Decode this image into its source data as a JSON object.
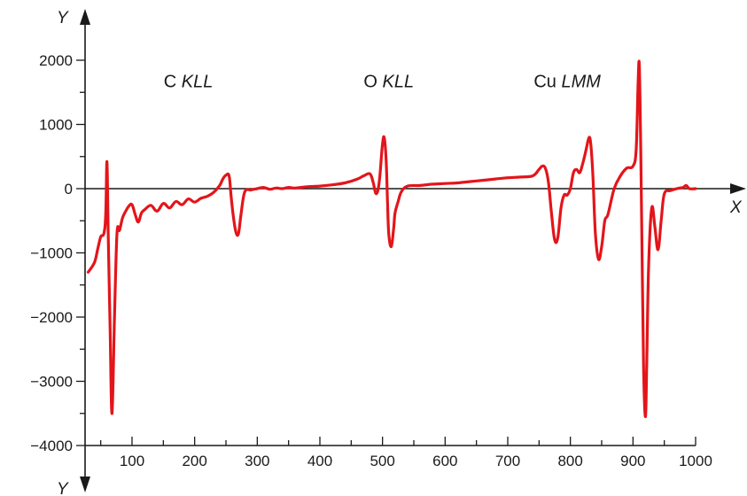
{
  "chart_data": {
    "type": "line",
    "xlabel": "X",
    "ylabel": "Y",
    "ylabel_bottom": "Y",
    "xlim": [
      30,
      1000
    ],
    "ylim": [
      -4000,
      2000
    ],
    "x_ticks": [
      100,
      200,
      300,
      400,
      500,
      600,
      700,
      800,
      900,
      1000
    ],
    "x_tick_labels": [
      "100",
      "200",
      "300",
      "400",
      "500",
      "600",
      "700",
      "800",
      "900",
      "1000"
    ],
    "y_ticks": [
      2000,
      1000,
      0,
      -1000,
      -2000,
      -3000,
      -4000
    ],
    "y_tick_labels": [
      "2000",
      "1000",
      "0",
      "−1000",
      "−2000",
      "−3000",
      "−4000"
    ],
    "grid": false,
    "line_color": "#e3151a",
    "annotations": [
      {
        "plain": "C ",
        "italic": "KLL",
        "x": 190,
        "y": 1580
      },
      {
        "plain": "O ",
        "italic": "KLL",
        "x": 510,
        "y": 1580
      },
      {
        "plain": "Cu ",
        "italic": "LMM",
        "x": 795,
        "y": 1580
      }
    ],
    "series": [
      {
        "x": [
          30,
          40,
          45,
          50,
          55,
          58,
          60,
          62,
          65,
          68,
          72,
          76,
          80,
          85,
          90,
          95,
          100,
          105,
          110,
          115,
          120,
          130,
          140,
          150,
          160,
          170,
          180,
          190,
          200,
          210,
          220,
          230,
          240,
          245,
          250,
          255,
          258,
          262,
          266,
          270,
          274,
          280,
          290,
          300,
          310,
          320,
          330,
          340,
          350,
          360,
          380,
          400,
          420,
          440,
          460,
          470,
          480,
          485,
          490,
          495,
          500,
          503,
          506,
          508,
          510,
          514,
          518,
          520,
          525,
          530,
          540,
          560,
          580,
          600,
          620,
          640,
          660,
          680,
          700,
          720,
          740,
          750,
          755,
          760,
          765,
          770,
          775,
          780,
          785,
          790,
          795,
          800,
          805,
          810,
          815,
          820,
          825,
          830,
          833,
          836,
          840,
          845,
          850,
          855,
          860,
          870,
          880,
          890,
          900,
          905,
          908,
          910,
          912,
          914,
          917,
          920,
          922,
          925,
          930,
          935,
          940,
          945,
          950,
          960,
          970,
          980,
          985,
          990,
          1000
        ],
        "y": [
          -1300,
          -1150,
          -950,
          -750,
          -700,
          -400,
          420,
          -700,
          -2200,
          -3500,
          -2000,
          -700,
          -650,
          -450,
          -350,
          -270,
          -250,
          -400,
          -520,
          -380,
          -330,
          -260,
          -350,
          -230,
          -300,
          -200,
          -250,
          -160,
          -210,
          -150,
          -120,
          -60,
          50,
          150,
          210,
          200,
          -100,
          -450,
          -680,
          -700,
          -400,
          -50,
          -20,
          0,
          20,
          -10,
          10,
          0,
          20,
          10,
          30,
          40,
          60,
          90,
          150,
          200,
          230,
          100,
          -80,
          120,
          700,
          780,
          400,
          -200,
          -700,
          -900,
          -600,
          -380,
          -200,
          -50,
          40,
          50,
          70,
          80,
          90,
          110,
          130,
          150,
          170,
          180,
          200,
          300,
          350,
          320,
          100,
          -400,
          -800,
          -760,
          -300,
          -100,
          -100,
          0,
          250,
          300,
          250,
          400,
          600,
          800,
          650,
          200,
          -700,
          -1100,
          -900,
          -500,
          -400,
          0,
          200,
          320,
          350,
          600,
          1600,
          1950,
          900,
          -600,
          -2800,
          -3550,
          -2700,
          -1200,
          -300,
          -600,
          -950,
          -500,
          -80,
          -30,
          0,
          20,
          50,
          0,
          0
        ]
      }
    ]
  }
}
